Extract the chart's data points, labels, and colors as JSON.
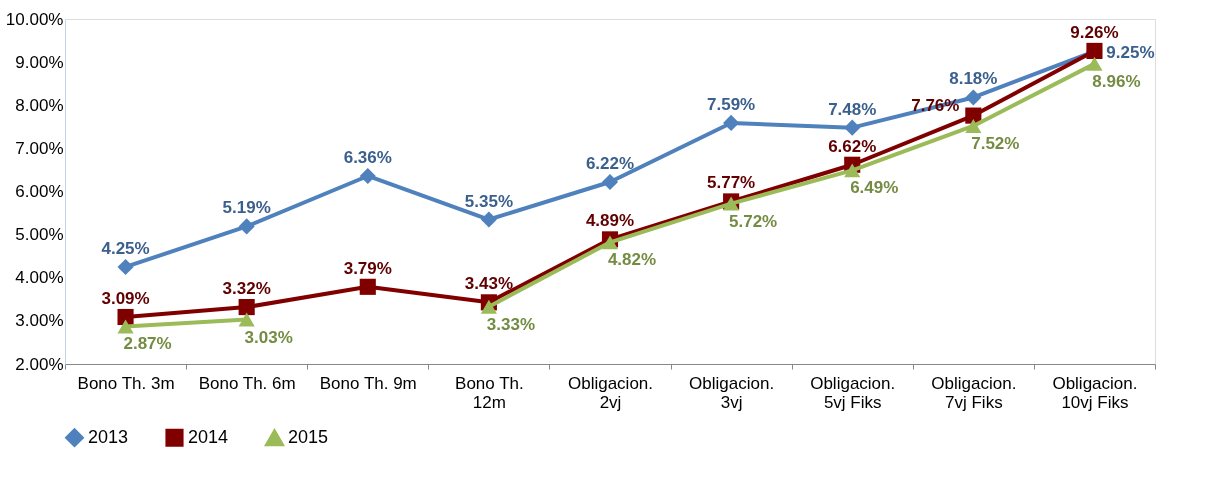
{
  "chart_data": {
    "type": "line",
    "categories": [
      "Bono Th. 3m",
      "Bono Th. 6m",
      "Bono Th. 9m",
      "Bono Th. 12m",
      "Obligacion. 2vj",
      "Obligacion. 3vj",
      "Obligacion. 5vj Fiks",
      "Obligacion. 7vj Fiks",
      "Obligacion. 10vj Fiks"
    ],
    "series": [
      {
        "name": "2013",
        "color": "#4f81bd",
        "marker": "diamond",
        "values": [
          4.25,
          5.19,
          6.36,
          5.35,
          6.22,
          7.59,
          7.48,
          8.18,
          9.25
        ],
        "value_labels": [
          "4.25%",
          "5.19%",
          "6.36%",
          "5.35%",
          "6.22%",
          "7.59%",
          "7.48%",
          "8.18%",
          "9.25%"
        ]
      },
      {
        "name": "2014",
        "color": "#800000",
        "marker": "square",
        "values": [
          3.09,
          3.32,
          3.79,
          3.43,
          4.89,
          5.77,
          6.62,
          7.76,
          9.26
        ],
        "value_labels": [
          "3.09%",
          "3.32%",
          "3.79%",
          "3.43%",
          "4.89%",
          "5.77%",
          "6.62%",
          "7.76%",
          "9.26%"
        ]
      },
      {
        "name": "2015",
        "color": "#9bbb59",
        "marker": "triangle",
        "values": [
          2.87,
          3.03,
          null,
          3.33,
          4.82,
          5.72,
          6.49,
          7.52,
          8.96
        ],
        "value_labels": [
          "2.87%",
          "3.03%",
          null,
          "3.33%",
          "4.82%",
          "5.72%",
          "6.49%",
          "7.52%",
          "8.96%"
        ]
      }
    ],
    "ylim": [
      2,
      10
    ],
    "yticks": [
      {
        "value": 2,
        "label": "2.00%"
      },
      {
        "value": 3,
        "label": "3.00%"
      },
      {
        "value": 4,
        "label": "4.00%"
      },
      {
        "value": 5,
        "label": "5.00%"
      },
      {
        "value": 6,
        "label": "6.00%"
      },
      {
        "value": 7,
        "label": "7.00%"
      },
      {
        "value": 8,
        "label": "8.00%"
      },
      {
        "value": 9,
        "label": "9.00%"
      },
      {
        "value": 10,
        "label": "10.00%"
      }
    ],
    "grid": false,
    "legend": "bottom",
    "line_style": "solid"
  }
}
